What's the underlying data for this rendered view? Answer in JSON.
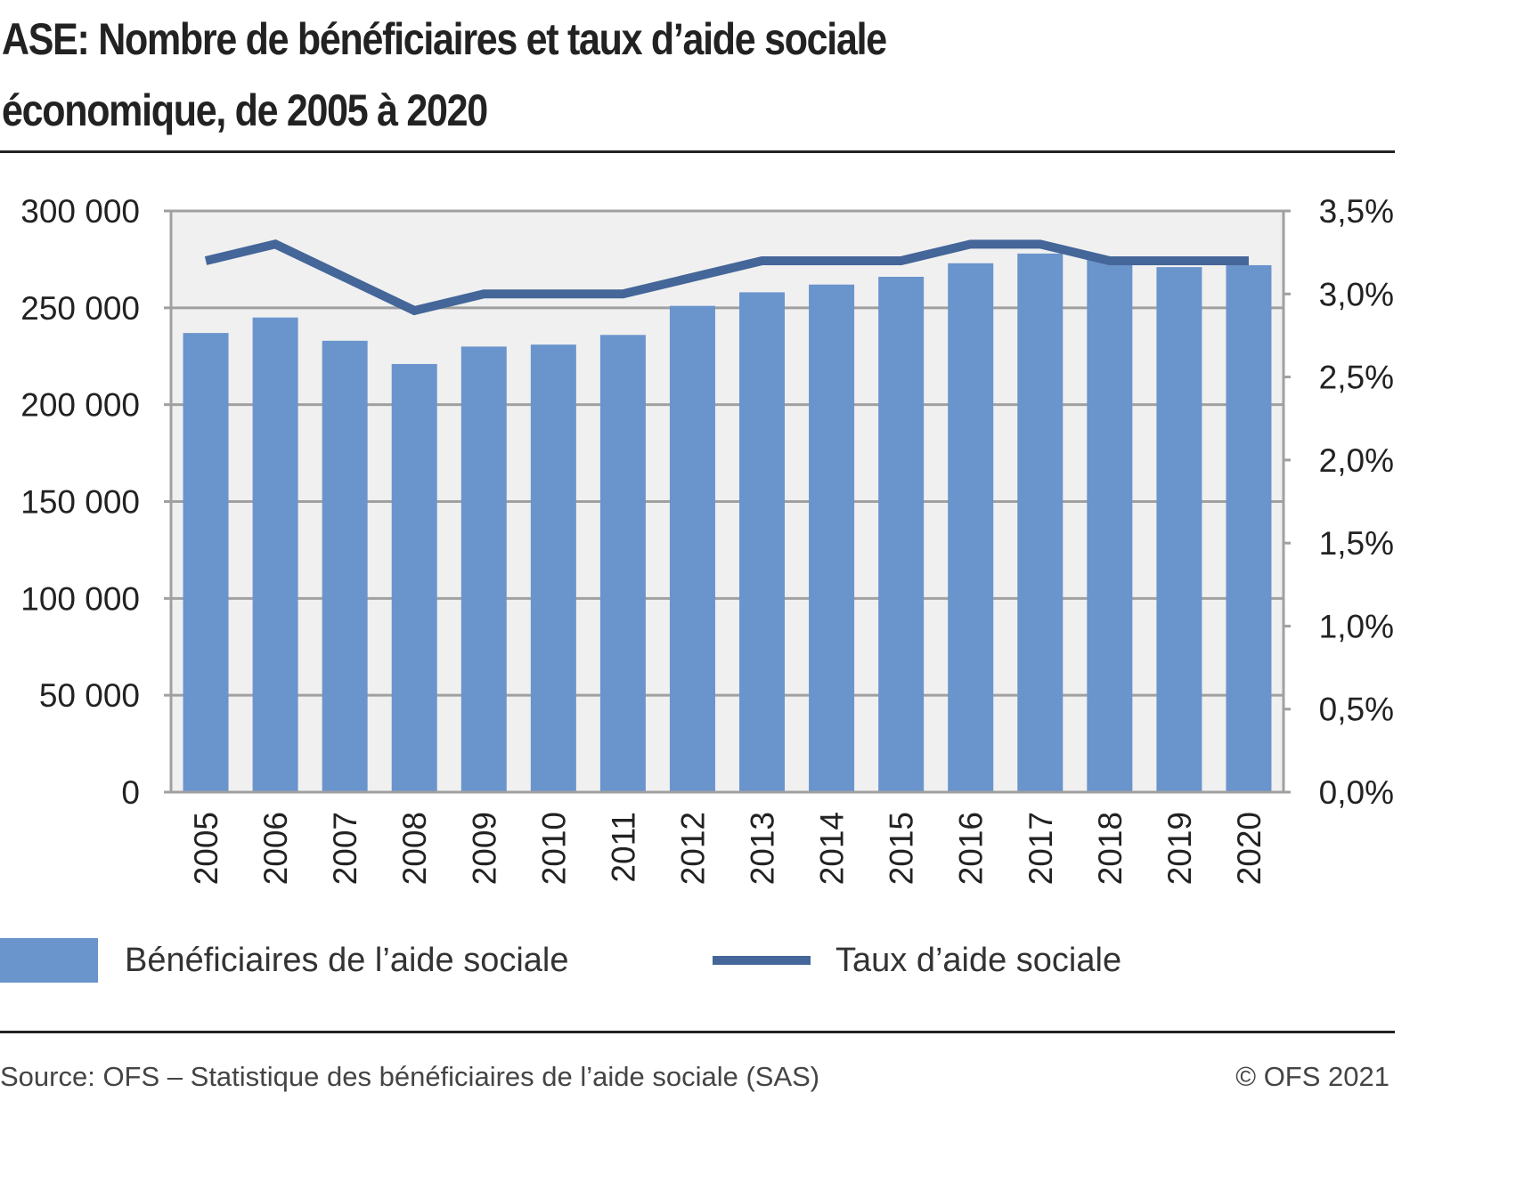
{
  "chart_data": {
    "type": "bar",
    "title": "ASE: Nombre de bénéficiaires et taux d’aide sociale économique, de 2005 à 2020",
    "categories": [
      "2005",
      "2006",
      "2007",
      "2008",
      "2009",
      "2010",
      "2011",
      "2012",
      "2013",
      "2014",
      "2015",
      "2016",
      "2017",
      "2018",
      "2019",
      "2020"
    ],
    "series": [
      {
        "name": "Bénéficiaires de l’aide sociale",
        "type": "bar",
        "axis": "left",
        "color": "#6a94cc",
        "values": [
          237000,
          245000,
          233000,
          221000,
          230000,
          231000,
          236000,
          251000,
          258000,
          262000,
          266000,
          273000,
          278000,
          275000,
          271000,
          272000
        ]
      },
      {
        "name": "Taux d’aide sociale",
        "type": "line",
        "axis": "right",
        "color": "#446699",
        "values": [
          3.2,
          3.3,
          3.1,
          2.9,
          3.0,
          3.0,
          3.0,
          3.1,
          3.2,
          3.2,
          3.2,
          3.3,
          3.3,
          3.2,
          3.2,
          3.2
        ]
      }
    ],
    "y_left": {
      "ylim": [
        0,
        300000
      ],
      "ticks": [
        0,
        50000,
        100000,
        150000,
        200000,
        250000,
        300000
      ],
      "tick_labels": [
        "0",
        "50 000",
        "100 000",
        "150 000",
        "200 000",
        "250 000",
        "300 000"
      ]
    },
    "y_right": {
      "ylim": [
        0,
        3.5
      ],
      "ticks": [
        0,
        0.5,
        1,
        1.5,
        2,
        2.5,
        3,
        3.5
      ],
      "tick_labels": [
        "0,0%",
        "0,5%",
        "1,0%",
        "1,5%",
        "2,0%",
        "2,5%",
        "3,0%",
        "3,5%"
      ]
    },
    "xlabel": "",
    "ylabel": "",
    "grid": true,
    "legend_position": "bottom"
  },
  "title_line1": "ASE: Nombre de bénéficiaires et taux d’aide sociale",
  "title_line2": "économique, de 2005 à 2020",
  "legend": {
    "bars": "Bénéficiaires de l’aide sociale",
    "line": "Taux d’aide sociale"
  },
  "footer": {
    "source": "Source: OFS – Statistique des bénéficiaires de l’aide sociale (SAS)",
    "copyright": "© OFS 2021"
  }
}
